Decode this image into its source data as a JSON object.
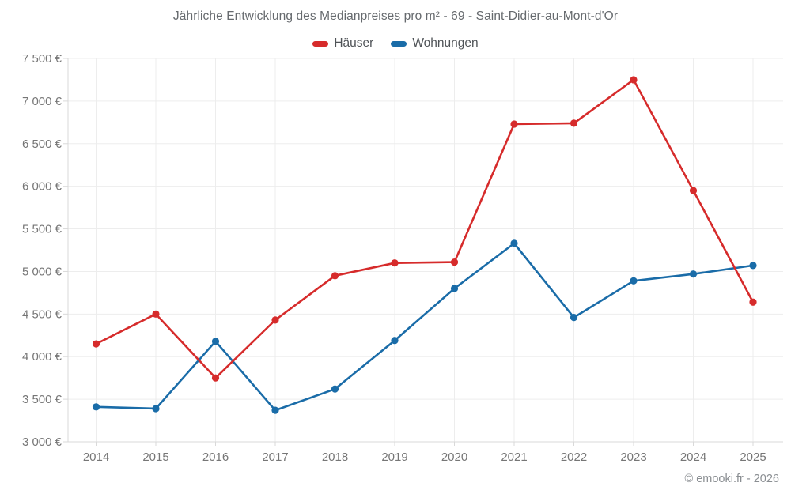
{
  "title": "Jährliche Entwicklung des Medianpreises pro m² - 69 - Saint-Didier-au-Mont-d'Or",
  "legend": {
    "items": [
      {
        "label": "Häuser",
        "color": "#d62b2b"
      },
      {
        "label": "Wohnungen",
        "color": "#1a6ca8"
      }
    ]
  },
  "footer": {
    "text": "© emooki.fr - 2026"
  },
  "colors": {
    "hauser": "#d62b2b",
    "wohnungen": "#1a6ca8",
    "gridline": "#ededed",
    "axis_border": "#d9d9d9",
    "axis_label": "#767676"
  },
  "chart_data": {
    "type": "line",
    "title": "Jährliche Entwicklung des Medianpreises pro m² - 69 - Saint-Didier-au-Mont-d'Or",
    "categories": [
      "2014",
      "2015",
      "2016",
      "2017",
      "2018",
      "2019",
      "2020",
      "2021",
      "2022",
      "2023",
      "2024",
      "2025"
    ],
    "series": [
      {
        "name": "Häuser",
        "color": "#d62b2b",
        "values": [
          4150,
          4500,
          3750,
          4430,
          4950,
          5100,
          5110,
          6730,
          6740,
          7250,
          5950,
          4640
        ]
      },
      {
        "name": "Wohnungen",
        "color": "#1a6ca8",
        "values": [
          3410,
          3390,
          4180,
          3370,
          3620,
          4190,
          4800,
          5330,
          4460,
          4890,
          4970,
          5070
        ]
      }
    ],
    "ylim": [
      3000,
      7500
    ],
    "ytick_step": 500,
    "yticks": [
      {
        "value": 3000,
        "label": "3 000 €"
      },
      {
        "value": 3500,
        "label": "3 500 €"
      },
      {
        "value": 4000,
        "label": "4 000 €"
      },
      {
        "value": 4500,
        "label": "4 500 €"
      },
      {
        "value": 5000,
        "label": "5 000 €"
      },
      {
        "value": 5500,
        "label": "5 500 €"
      },
      {
        "value": 6000,
        "label": "6 000 €"
      },
      {
        "value": 6500,
        "label": "6 500 €"
      },
      {
        "value": 7000,
        "label": "7 000 €"
      },
      {
        "value": 7500,
        "label": "7 500 €"
      }
    ],
    "unit": "€",
    "grid": true,
    "legend_position": "top"
  }
}
